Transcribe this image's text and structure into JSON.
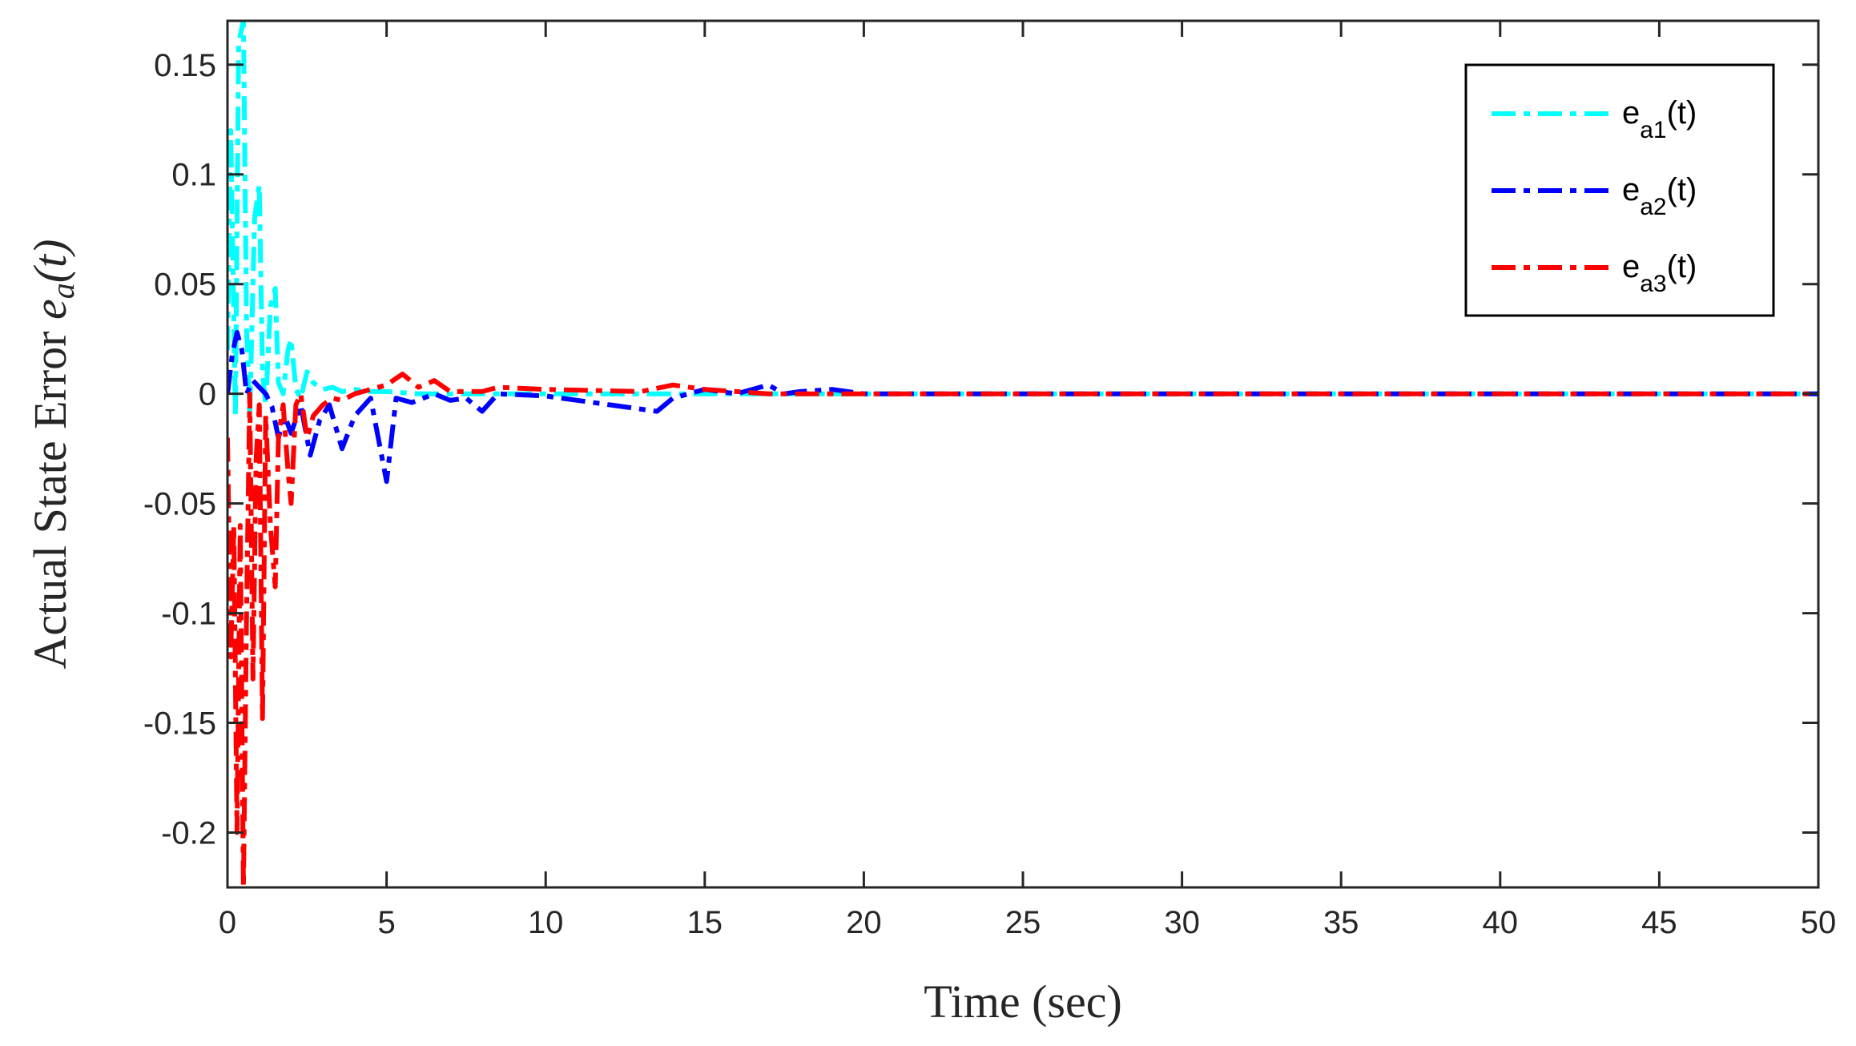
{
  "chart_data": {
    "type": "line",
    "xlabel": "Time (sec)",
    "ylabel": {
      "prefix": "Actual State Error ",
      "var": "e",
      "sub": "a",
      "suffix": "(t)"
    },
    "xlim": [
      0,
      50
    ],
    "ylim": [
      -0.225,
      0.17
    ],
    "xticks": [
      0,
      5,
      10,
      15,
      20,
      25,
      30,
      35,
      40,
      45,
      50
    ],
    "xtick_labels": [
      "0",
      "5",
      "10",
      "15",
      "20",
      "25",
      "30",
      "35",
      "40",
      "45",
      "50"
    ],
    "yticks": [
      0.15,
      0.1,
      0.05,
      0,
      -0.05,
      -0.1,
      -0.15,
      -0.2
    ],
    "ytick_labels": [
      "0.15",
      "0.1",
      "0.05",
      "0",
      "-0.05",
      "-0.1",
      "-0.15",
      "-0.2"
    ],
    "grid": false,
    "legend_position": "top-right",
    "series": [
      {
        "name": "e_a1(t)",
        "legend_base": "e",
        "legend_sub": "a1",
        "legend_suffix": "(t)",
        "color": "#00FFFF",
        "x": [
          0,
          0.1,
          0.25,
          0.35,
          0.5,
          0.6,
          0.7,
          0.85,
          1.0,
          1.1,
          1.2,
          1.35,
          1.5,
          1.6,
          1.75,
          1.9,
          2.0,
          2.15,
          2.3,
          2.5,
          2.7,
          3.0,
          3.3,
          3.6,
          4.0,
          4.5,
          5.0,
          6.0,
          8.0,
          10.0,
          13.5,
          14.0,
          15.0,
          17.0,
          20.0,
          30.0,
          40.0,
          50.0
        ],
        "y": [
          0.02,
          0.12,
          -0.01,
          0.16,
          0.17,
          0.03,
          -0.01,
          0.08,
          0.095,
          0.01,
          -0.005,
          0.04,
          0.048,
          0.005,
          0.0,
          0.02,
          0.025,
          0.002,
          -0.002,
          0.01,
          0.005,
          0.002,
          0.003,
          0.001,
          0.002,
          0.001,
          0.001,
          0.0,
          0.0,
          0.0,
          0.0,
          0.0,
          0.0,
          0.0,
          0.0,
          0.0,
          0.0,
          0.0
        ]
      },
      {
        "name": "e_a2(t)",
        "legend_base": "e",
        "legend_sub": "a2",
        "legend_suffix": "(t)",
        "color": "#0000FF",
        "x": [
          0,
          0.15,
          0.3,
          0.45,
          0.6,
          0.8,
          1.0,
          1.2,
          1.4,
          1.6,
          1.8,
          2.0,
          2.3,
          2.6,
          2.9,
          3.2,
          3.6,
          4.0,
          4.5,
          5.0,
          5.3,
          5.8,
          6.5,
          7.0,
          7.5,
          8.0,
          8.5,
          10.0,
          13.5,
          14.0,
          15.0,
          16.0,
          17.0,
          17.5,
          18.0,
          19.0,
          20.0,
          30.0,
          40.0,
          50.0
        ],
        "y": [
          0.0,
          0.018,
          0.028,
          0.02,
          0.0,
          0.006,
          0.003,
          0.0,
          -0.006,
          -0.02,
          -0.01,
          -0.018,
          -0.005,
          -0.028,
          -0.012,
          -0.005,
          -0.025,
          -0.01,
          -0.002,
          -0.04,
          -0.002,
          -0.004,
          0.0,
          -0.003,
          -0.002,
          -0.008,
          0.0,
          -0.001,
          -0.008,
          -0.002,
          0.002,
          0.0,
          0.004,
          0.0,
          0.001,
          0.002,
          0.0,
          0.0,
          0.0,
          0.0
        ]
      },
      {
        "name": "e_a3(t)",
        "legend_base": "e",
        "legend_sub": "a3",
        "legend_suffix": "(t)",
        "color": "#FF0000",
        "x": [
          0,
          0.1,
          0.2,
          0.3,
          0.4,
          0.5,
          0.6,
          0.7,
          0.8,
          0.9,
          1.0,
          1.1,
          1.2,
          1.35,
          1.5,
          1.6,
          1.75,
          1.9,
          2.0,
          2.15,
          2.3,
          2.5,
          2.7,
          3.0,
          3.3,
          3.6,
          4.0,
          4.5,
          5.0,
          5.5,
          6.0,
          6.5,
          7.0,
          8.0,
          8.5,
          10.0,
          13.0,
          14.0,
          15.0,
          17.0,
          18.0,
          20.0,
          30.0,
          40.0,
          50.0
        ],
        "y": [
          -0.02,
          -0.12,
          -0.06,
          -0.2,
          -0.06,
          -0.225,
          -0.1,
          0.0,
          -0.13,
          -0.03,
          -0.005,
          -0.148,
          -0.01,
          -0.06,
          -0.088,
          -0.02,
          -0.005,
          -0.035,
          -0.05,
          -0.005,
          0.0,
          -0.02,
          -0.01,
          -0.005,
          -0.002,
          -0.003,
          0.0,
          0.002,
          0.004,
          0.009,
          0.003,
          0.006,
          0.001,
          0.001,
          0.003,
          0.002,
          0.001,
          0.004,
          0.002,
          0.0,
          0.0,
          0.0,
          0.0,
          0.0,
          0.0
        ]
      }
    ]
  }
}
